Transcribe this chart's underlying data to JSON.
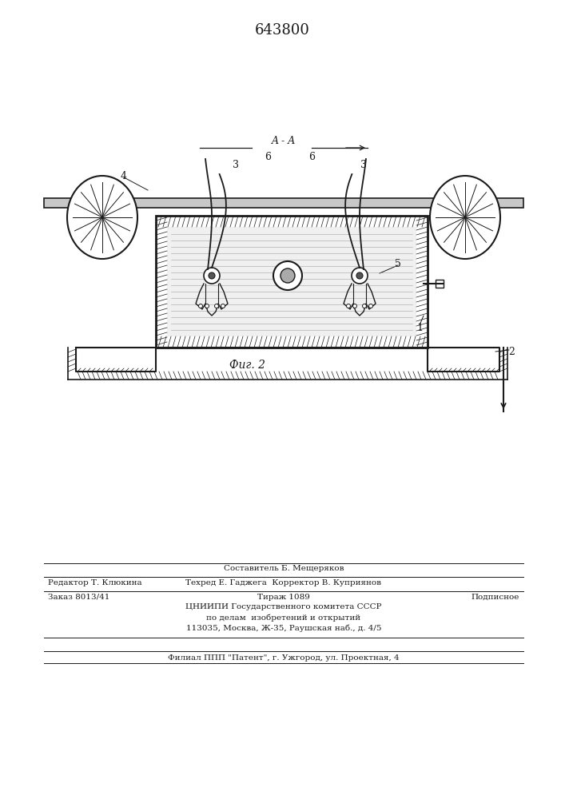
{
  "patent_number": "643800",
  "fig_label": "Фиг. 2",
  "section_label": "A - A",
  "background_color": "#ffffff",
  "line_color": "#1a1a1a",
  "editor_line": "Редактор Т. Клюкина",
  "tech_line": "Техред Е. Гаджега  Корректор В. Куприянов",
  "composer_line": "Составитель Б. Мещеряков",
  "order_line": "Заказ 8013/41",
  "tirazh_line": "Тираж 1089",
  "podp_line": "Подписное",
  "org_line1": "ЦНИИПИ Государственного комитета СССР",
  "org_line2": "по делам  изобретений и открытий",
  "org_line3": "113035, Москва, Ж-35, Раушская наб., д. 4/5",
  "filial_line": "Филиал ППП \"Патент\", г. Ужгород, ул. Проектная, 4"
}
